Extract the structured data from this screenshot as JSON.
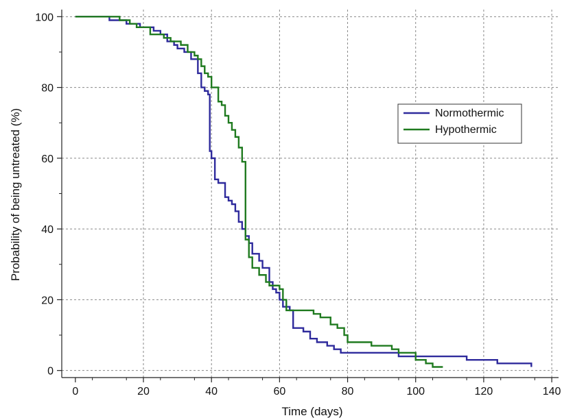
{
  "chart_data": {
    "type": "line",
    "step": true,
    "xlabel": "Time (days)",
    "ylabel": "Probability of being untreated (%)",
    "xlim": [
      -4,
      142
    ],
    "ylim": [
      -2,
      102
    ],
    "xticks": [
      0,
      20,
      40,
      60,
      80,
      100,
      120,
      140
    ],
    "yticks": [
      0,
      20,
      40,
      60,
      80,
      100
    ],
    "grid": true,
    "legend_position": "right",
    "series": [
      {
        "name": "Normothermic",
        "color": "#2e2a9c",
        "x": [
          0,
          10,
          15,
          19,
          23,
          25,
          27,
          29,
          30,
          32,
          34,
          36,
          37,
          38,
          39,
          39.5,
          40,
          41,
          42,
          44,
          45,
          46,
          47,
          48,
          49,
          50,
          51,
          52,
          54,
          55,
          57,
          58,
          59,
          60,
          61,
          63,
          64,
          67,
          69,
          71,
          74,
          76,
          78,
          80,
          95,
          105,
          110,
          115,
          124,
          134
        ],
        "y": [
          100,
          99,
          98,
          97,
          96,
          95,
          93,
          92,
          91,
          90,
          88,
          84,
          80,
          79,
          78,
          62,
          60,
          54,
          53,
          49,
          48,
          47,
          45,
          42,
          40,
          38,
          36,
          33,
          31,
          29,
          25,
          23,
          22,
          20,
          18,
          17,
          12,
          11,
          9,
          8,
          7,
          6,
          5,
          5,
          4,
          4,
          4,
          3,
          2,
          1
        ]
      },
      {
        "name": "Hypothermic",
        "color": "#1f7a1f",
        "x": [
          0,
          13,
          16,
          18,
          22,
          26,
          28,
          31,
          33,
          35,
          36,
          37,
          38,
          39,
          40,
          42,
          43,
          44,
          45,
          46,
          47,
          48,
          49,
          50,
          51,
          52,
          54,
          56,
          57,
          60,
          61,
          62,
          70,
          72,
          75,
          77,
          79,
          80,
          87,
          93,
          95,
          100,
          103,
          105,
          108
        ],
        "y": [
          100,
          99,
          98,
          97,
          95,
          94,
          93,
          92,
          90,
          89,
          88,
          86,
          84,
          83,
          80,
          76,
          75,
          72,
          70,
          68,
          66,
          63,
          59,
          37,
          32,
          29,
          27,
          25,
          24,
          23,
          20,
          17,
          16,
          15,
          13,
          12,
          10,
          8,
          7,
          6,
          5,
          3,
          2,
          1,
          1
        ]
      }
    ]
  }
}
